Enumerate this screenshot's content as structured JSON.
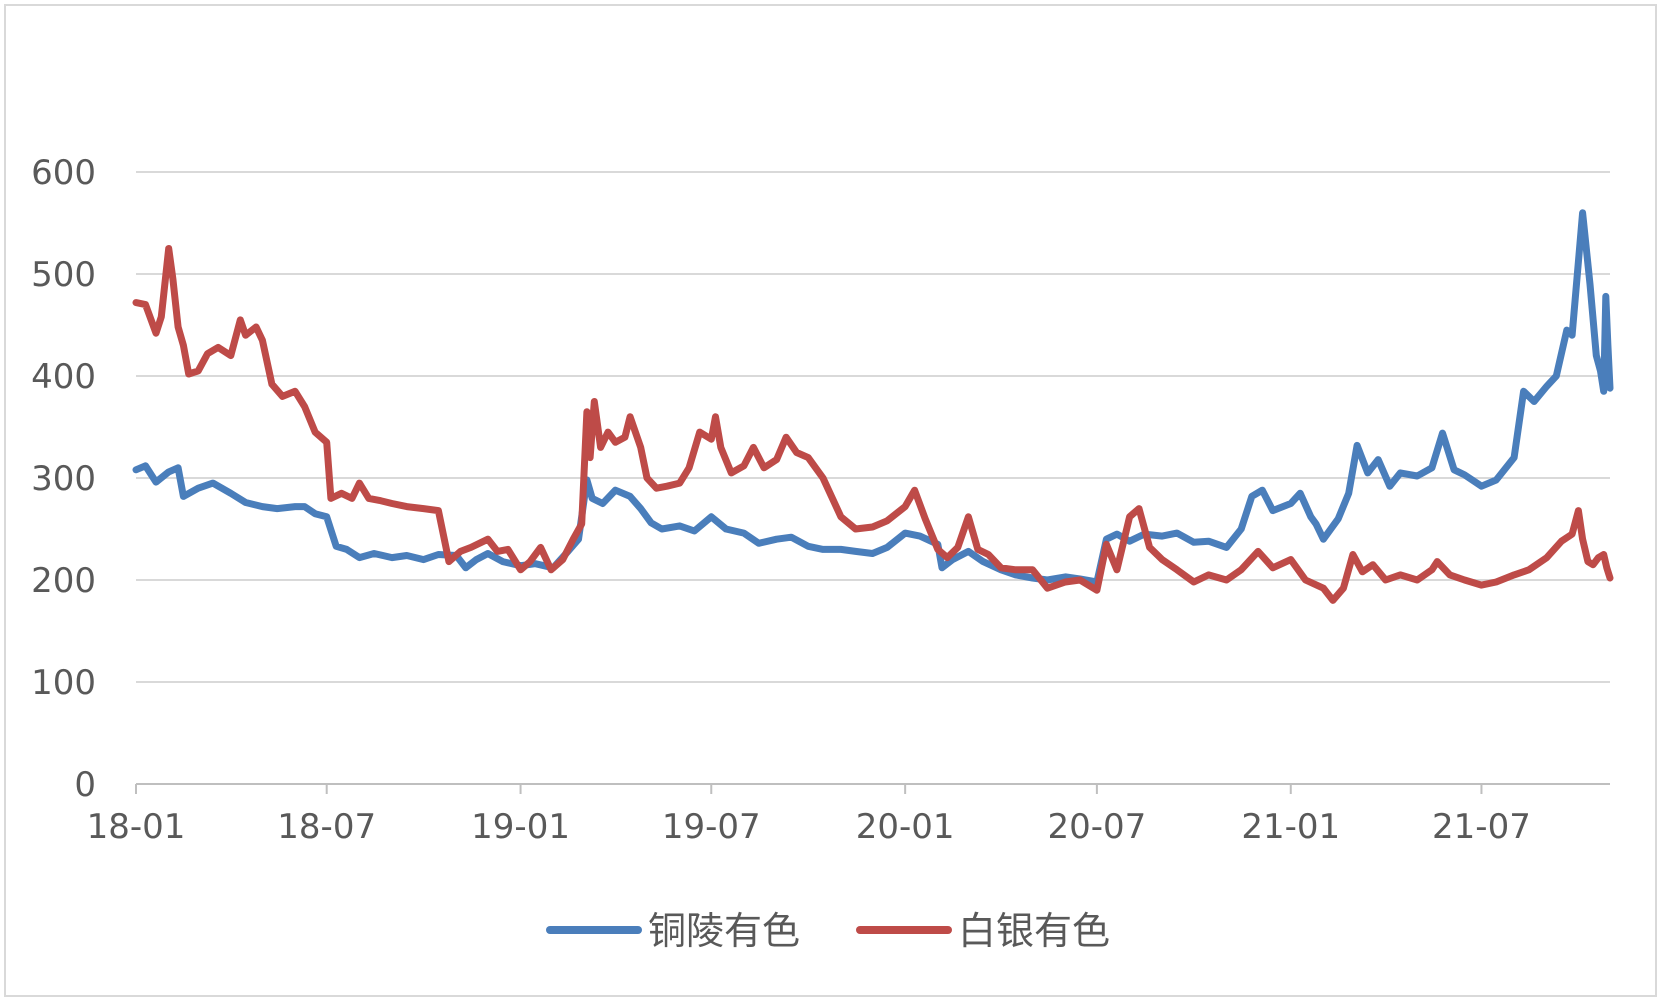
{
  "chart_data": {
    "type": "line",
    "title": "",
    "xlabel": "",
    "ylabel": "",
    "ylim": [
      0,
      600
    ],
    "yticks": [
      "0",
      "100",
      "200",
      "300",
      "400",
      "500",
      "600"
    ],
    "xlim": [
      "2018-01-01",
      "2021-10-31"
    ],
    "xticks": [
      {
        "label": "18-01",
        "date": "2018-01-01"
      },
      {
        "label": "18-07",
        "date": "2018-07-01"
      },
      {
        "label": "19-01",
        "date": "2019-01-01"
      },
      {
        "label": "19-07",
        "date": "2019-07-01"
      },
      {
        "label": "20-01",
        "date": "2020-01-01"
      },
      {
        "label": "20-07",
        "date": "2020-07-01"
      },
      {
        "label": "21-01",
        "date": "2021-01-01"
      },
      {
        "label": "21-07",
        "date": "2021-07-01"
      }
    ],
    "grid": true,
    "legend_position": "bottom",
    "series": [
      {
        "name": "铜陵有色",
        "color": "#4a7ebb",
        "points": [
          [
            "2018-01-01",
            308
          ],
          [
            "2018-01-10",
            312
          ],
          [
            "2018-01-20",
            296
          ],
          [
            "2018-02-01",
            306
          ],
          [
            "2018-02-10",
            310
          ],
          [
            "2018-02-15",
            282
          ],
          [
            "2018-03-01",
            290
          ],
          [
            "2018-03-15",
            295
          ],
          [
            "2018-04-01",
            285
          ],
          [
            "2018-04-15",
            276
          ],
          [
            "2018-05-01",
            272
          ],
          [
            "2018-05-15",
            270
          ],
          [
            "2018-06-01",
            272
          ],
          [
            "2018-06-10",
            272
          ],
          [
            "2018-06-20",
            265
          ],
          [
            "2018-07-01",
            262
          ],
          [
            "2018-07-10",
            233
          ],
          [
            "2018-07-20",
            230
          ],
          [
            "2018-08-01",
            222
          ],
          [
            "2018-08-15",
            226
          ],
          [
            "2018-09-01",
            222
          ],
          [
            "2018-09-15",
            224
          ],
          [
            "2018-10-01",
            220
          ],
          [
            "2018-10-15",
            225
          ],
          [
            "2018-11-01",
            224
          ],
          [
            "2018-11-10",
            212
          ],
          [
            "2018-11-20",
            220
          ],
          [
            "2018-12-01",
            226
          ],
          [
            "2018-12-15",
            218
          ],
          [
            "2019-01-01",
            214
          ],
          [
            "2019-01-15",
            216
          ],
          [
            "2019-02-01",
            212
          ],
          [
            "2019-02-15",
            228
          ],
          [
            "2019-02-25",
            240
          ],
          [
            "2019-03-05",
            298
          ],
          [
            "2019-03-10",
            280
          ],
          [
            "2019-03-20",
            275
          ],
          [
            "2019-04-01",
            288
          ],
          [
            "2019-04-15",
            282
          ],
          [
            "2019-04-25",
            270
          ],
          [
            "2019-05-05",
            256
          ],
          [
            "2019-05-15",
            250
          ],
          [
            "2019-06-01",
            253
          ],
          [
            "2019-06-15",
            248
          ],
          [
            "2019-07-01",
            262
          ],
          [
            "2019-07-15",
            250
          ],
          [
            "2019-08-01",
            246
          ],
          [
            "2019-08-15",
            236
          ],
          [
            "2019-09-01",
            240
          ],
          [
            "2019-09-15",
            242
          ],
          [
            "2019-10-01",
            233
          ],
          [
            "2019-10-15",
            230
          ],
          [
            "2019-11-01",
            230
          ],
          [
            "2019-11-15",
            228
          ],
          [
            "2019-12-01",
            226
          ],
          [
            "2019-12-15",
            232
          ],
          [
            "2020-01-01",
            246
          ],
          [
            "2020-01-15",
            243
          ],
          [
            "2020-02-01",
            235
          ],
          [
            "2020-02-05",
            212
          ],
          [
            "2020-02-15",
            220
          ],
          [
            "2020-03-01",
            228
          ],
          [
            "2020-03-15",
            218
          ],
          [
            "2020-04-01",
            210
          ],
          [
            "2020-04-15",
            205
          ],
          [
            "2020-05-01",
            202
          ],
          [
            "2020-05-15",
            200
          ],
          [
            "2020-06-01",
            203
          ],
          [
            "2020-06-15",
            201
          ],
          [
            "2020-07-01",
            198
          ],
          [
            "2020-07-10",
            240
          ],
          [
            "2020-07-20",
            245
          ],
          [
            "2020-08-01",
            238
          ],
          [
            "2020-08-15",
            245
          ],
          [
            "2020-09-01",
            243
          ],
          [
            "2020-09-15",
            246
          ],
          [
            "2020-10-01",
            237
          ],
          [
            "2020-10-15",
            238
          ],
          [
            "2020-11-01",
            232
          ],
          [
            "2020-11-15",
            250
          ],
          [
            "2020-11-25",
            282
          ],
          [
            "2020-12-05",
            288
          ],
          [
            "2020-12-15",
            268
          ],
          [
            "2021-01-01",
            275
          ],
          [
            "2021-01-10",
            285
          ],
          [
            "2021-01-20",
            262
          ],
          [
            "2021-01-25",
            255
          ],
          [
            "2021-02-01",
            240
          ],
          [
            "2021-02-15",
            260
          ],
          [
            "2021-02-25",
            285
          ],
          [
            "2021-03-05",
            332
          ],
          [
            "2021-03-15",
            305
          ],
          [
            "2021-03-25",
            318
          ],
          [
            "2021-04-05",
            292
          ],
          [
            "2021-04-15",
            305
          ],
          [
            "2021-05-01",
            302
          ],
          [
            "2021-05-15",
            310
          ],
          [
            "2021-05-25",
            344
          ],
          [
            "2021-06-05",
            308
          ],
          [
            "2021-06-15",
            303
          ],
          [
            "2021-07-01",
            292
          ],
          [
            "2021-07-15",
            298
          ],
          [
            "2021-08-01",
            320
          ],
          [
            "2021-08-10",
            385
          ],
          [
            "2021-08-20",
            375
          ],
          [
            "2021-09-01",
            390
          ],
          [
            "2021-09-10",
            400
          ],
          [
            "2021-09-20",
            445
          ],
          [
            "2021-09-25",
            440
          ],
          [
            "2021-10-05",
            560
          ],
          [
            "2021-10-12",
            490
          ],
          [
            "2021-10-18",
            420
          ],
          [
            "2021-10-22",
            405
          ],
          [
            "2021-10-25",
            385
          ],
          [
            "2021-10-27",
            478
          ],
          [
            "2021-10-29",
            430
          ],
          [
            "2021-10-31",
            388
          ]
        ]
      },
      {
        "name": "白银有色",
        "color": "#be4b48",
        "points": [
          [
            "2018-01-01",
            472
          ],
          [
            "2018-01-10",
            470
          ],
          [
            "2018-01-20",
            442
          ],
          [
            "2018-01-25",
            458
          ],
          [
            "2018-02-01",
            525
          ],
          [
            "2018-02-05",
            495
          ],
          [
            "2018-02-10",
            448
          ],
          [
            "2018-02-15",
            430
          ],
          [
            "2018-02-20",
            402
          ],
          [
            "2018-03-01",
            405
          ],
          [
            "2018-03-10",
            422
          ],
          [
            "2018-03-20",
            428
          ],
          [
            "2018-04-01",
            420
          ],
          [
            "2018-04-10",
            455
          ],
          [
            "2018-04-15",
            440
          ],
          [
            "2018-04-25",
            448
          ],
          [
            "2018-05-01",
            435
          ],
          [
            "2018-05-10",
            392
          ],
          [
            "2018-05-20",
            380
          ],
          [
            "2018-06-01",
            385
          ],
          [
            "2018-06-10",
            370
          ],
          [
            "2018-06-20",
            345
          ],
          [
            "2018-07-01",
            335
          ],
          [
            "2018-07-05",
            280
          ],
          [
            "2018-07-15",
            285
          ],
          [
            "2018-07-25",
            280
          ],
          [
            "2018-08-01",
            295
          ],
          [
            "2018-08-10",
            280
          ],
          [
            "2018-08-20",
            278
          ],
          [
            "2018-09-01",
            275
          ],
          [
            "2018-09-15",
            272
          ],
          [
            "2018-10-01",
            270
          ],
          [
            "2018-10-15",
            268
          ],
          [
            "2018-10-25",
            218
          ],
          [
            "2018-11-05",
            228
          ],
          [
            "2018-11-15",
            232
          ],
          [
            "2018-12-01",
            240
          ],
          [
            "2018-12-10",
            228
          ],
          [
            "2018-12-20",
            230
          ],
          [
            "2019-01-01",
            210
          ],
          [
            "2019-01-10",
            218
          ],
          [
            "2019-01-20",
            232
          ],
          [
            "2019-01-30",
            210
          ],
          [
            "2019-02-10",
            220
          ],
          [
            "2019-02-20",
            240
          ],
          [
            "2019-02-28",
            255
          ],
          [
            "2019-03-05",
            365
          ],
          [
            "2019-03-08",
            320
          ],
          [
            "2019-03-12",
            375
          ],
          [
            "2019-03-18",
            330
          ],
          [
            "2019-03-25",
            345
          ],
          [
            "2019-04-01",
            335
          ],
          [
            "2019-04-10",
            340
          ],
          [
            "2019-04-15",
            360
          ],
          [
            "2019-04-25",
            330
          ],
          [
            "2019-05-01",
            300
          ],
          [
            "2019-05-10",
            290
          ],
          [
            "2019-05-20",
            292
          ],
          [
            "2019-06-01",
            295
          ],
          [
            "2019-06-10",
            310
          ],
          [
            "2019-06-20",
            345
          ],
          [
            "2019-07-01",
            338
          ],
          [
            "2019-07-05",
            360
          ],
          [
            "2019-07-10",
            330
          ],
          [
            "2019-07-20",
            305
          ],
          [
            "2019-08-01",
            312
          ],
          [
            "2019-08-10",
            330
          ],
          [
            "2019-08-20",
            310
          ],
          [
            "2019-09-01",
            318
          ],
          [
            "2019-09-10",
            340
          ],
          [
            "2019-09-20",
            325
          ],
          [
            "2019-10-01",
            320
          ],
          [
            "2019-10-15",
            300
          ],
          [
            "2019-11-01",
            262
          ],
          [
            "2019-11-15",
            250
          ],
          [
            "2019-12-01",
            252
          ],
          [
            "2019-12-15",
            258
          ],
          [
            "2020-01-01",
            272
          ],
          [
            "2020-01-10",
            288
          ],
          [
            "2020-01-20",
            260
          ],
          [
            "2020-02-01",
            230
          ],
          [
            "2020-02-10",
            222
          ],
          [
            "2020-02-20",
            232
          ],
          [
            "2020-03-01",
            262
          ],
          [
            "2020-03-10",
            230
          ],
          [
            "2020-03-20",
            225
          ],
          [
            "2020-04-01",
            212
          ],
          [
            "2020-04-15",
            210
          ],
          [
            "2020-05-01",
            210
          ],
          [
            "2020-05-15",
            192
          ],
          [
            "2020-06-01",
            198
          ],
          [
            "2020-06-15",
            200
          ],
          [
            "2020-07-01",
            190
          ],
          [
            "2020-07-10",
            235
          ],
          [
            "2020-07-20",
            210
          ],
          [
            "2020-08-01",
            262
          ],
          [
            "2020-08-10",
            270
          ],
          [
            "2020-08-20",
            232
          ],
          [
            "2020-09-01",
            220
          ],
          [
            "2020-09-15",
            210
          ],
          [
            "2020-10-01",
            198
          ],
          [
            "2020-10-15",
            205
          ],
          [
            "2020-11-01",
            200
          ],
          [
            "2020-11-15",
            210
          ],
          [
            "2020-12-01",
            228
          ],
          [
            "2020-12-15",
            212
          ],
          [
            "2021-01-01",
            220
          ],
          [
            "2021-01-15",
            200
          ],
          [
            "2021-02-01",
            192
          ],
          [
            "2021-02-10",
            180
          ],
          [
            "2021-02-20",
            192
          ],
          [
            "2021-03-01",
            225
          ],
          [
            "2021-03-10",
            208
          ],
          [
            "2021-03-20",
            215
          ],
          [
            "2021-04-01",
            200
          ],
          [
            "2021-04-15",
            205
          ],
          [
            "2021-05-01",
            200
          ],
          [
            "2021-05-15",
            210
          ],
          [
            "2021-05-20",
            218
          ],
          [
            "2021-06-01",
            205
          ],
          [
            "2021-06-15",
            200
          ],
          [
            "2021-07-01",
            195
          ],
          [
            "2021-07-15",
            198
          ],
          [
            "2021-08-01",
            205
          ],
          [
            "2021-08-15",
            210
          ],
          [
            "2021-09-01",
            222
          ],
          [
            "2021-09-15",
            238
          ],
          [
            "2021-09-25",
            245
          ],
          [
            "2021-10-01",
            268
          ],
          [
            "2021-10-05",
            240
          ],
          [
            "2021-10-10",
            218
          ],
          [
            "2021-10-15",
            215
          ],
          [
            "2021-10-20",
            222
          ],
          [
            "2021-10-25",
            225
          ],
          [
            "2021-10-28",
            212
          ],
          [
            "2021-10-31",
            202
          ]
        ]
      }
    ]
  }
}
